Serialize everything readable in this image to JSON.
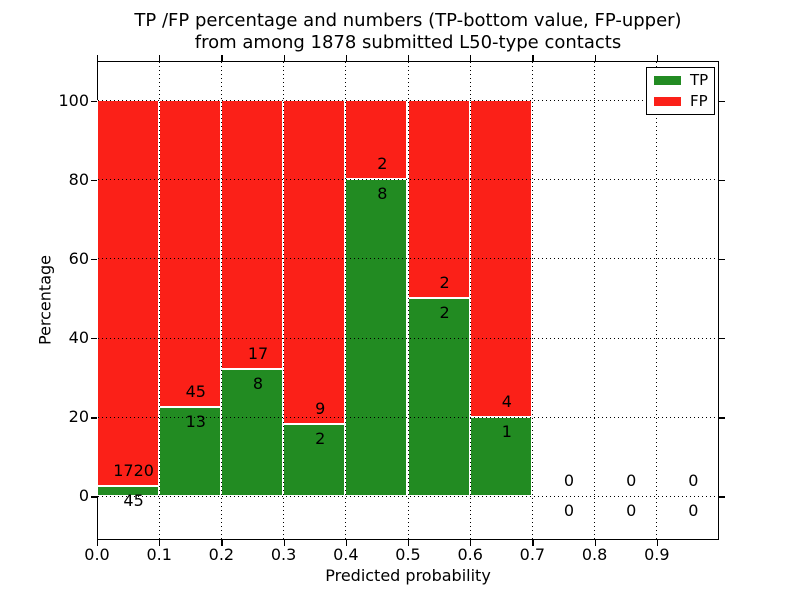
{
  "title": {
    "line1": "TP /FP percentage and numbers (TP-bottom value, FP-upper)",
    "line2": "from among 1878 submitted L50-type contacts"
  },
  "chart_data": {
    "type": "bar",
    "stacked": true,
    "title": "TP /FP percentage and numbers (TP-bottom value, FP-upper) from among 1878 submitted L50-type contacts",
    "xlabel": "Predicted probability",
    "ylabel": "Percentage",
    "total_submitted_contacts": 1878,
    "xlim": [
      0,
      1
    ],
    "ylim": [
      -11,
      110
    ],
    "grid": "dotted",
    "xticks": {
      "values": [
        0,
        0.1,
        0.2,
        0.3,
        0.4,
        0.5,
        0.6,
        0.7,
        0.8,
        0.9
      ],
      "labels": [
        "0.0",
        "0.1",
        "0.2",
        "0.3",
        "0.4",
        "0.5",
        "0.6",
        "0.7",
        "0.8",
        "0.9"
      ]
    },
    "yticks": {
      "values": [
        0,
        20,
        40,
        60,
        80,
        100
      ],
      "labels": [
        "0",
        "20",
        "40",
        "60",
        "80",
        "100"
      ]
    },
    "legend": {
      "position": "upper right",
      "entries": [
        {
          "label": "TP",
          "color": "#228b22"
        },
        {
          "label": "FP",
          "color": "#fb2018"
        }
      ]
    },
    "bins": [
      {
        "x0": 0.0,
        "x1": 0.1,
        "tp": 45,
        "fp": 1720,
        "tp_pct": 2.55,
        "fp_pct": 97.45
      },
      {
        "x0": 0.1,
        "x1": 0.2,
        "tp": 13,
        "fp": 45,
        "tp_pct": 22.41,
        "fp_pct": 77.59
      },
      {
        "x0": 0.2,
        "x1": 0.3,
        "tp": 8,
        "fp": 17,
        "tp_pct": 32.0,
        "fp_pct": 68.0
      },
      {
        "x0": 0.3,
        "x1": 0.4,
        "tp": 2,
        "fp": 9,
        "tp_pct": 18.18,
        "fp_pct": 81.82
      },
      {
        "x0": 0.4,
        "x1": 0.5,
        "tp": 8,
        "fp": 2,
        "tp_pct": 80.0,
        "fp_pct": 20.0
      },
      {
        "x0": 0.5,
        "x1": 0.6,
        "tp": 2,
        "fp": 2,
        "tp_pct": 50.0,
        "fp_pct": 50.0
      },
      {
        "x0": 0.6,
        "x1": 0.7,
        "tp": 1,
        "fp": 4,
        "tp_pct": 20.0,
        "fp_pct": 80.0
      },
      {
        "x0": 0.7,
        "x1": 0.8,
        "tp": 0,
        "fp": 0,
        "tp_pct": 0,
        "fp_pct": 0
      },
      {
        "x0": 0.8,
        "x1": 0.9,
        "tp": 0,
        "fp": 0,
        "tp_pct": 0,
        "fp_pct": 0
      },
      {
        "x0": 0.9,
        "x1": 1.0,
        "tp": 0,
        "fp": 0,
        "tp_pct": 0,
        "fp_pct": 0
      }
    ]
  }
}
